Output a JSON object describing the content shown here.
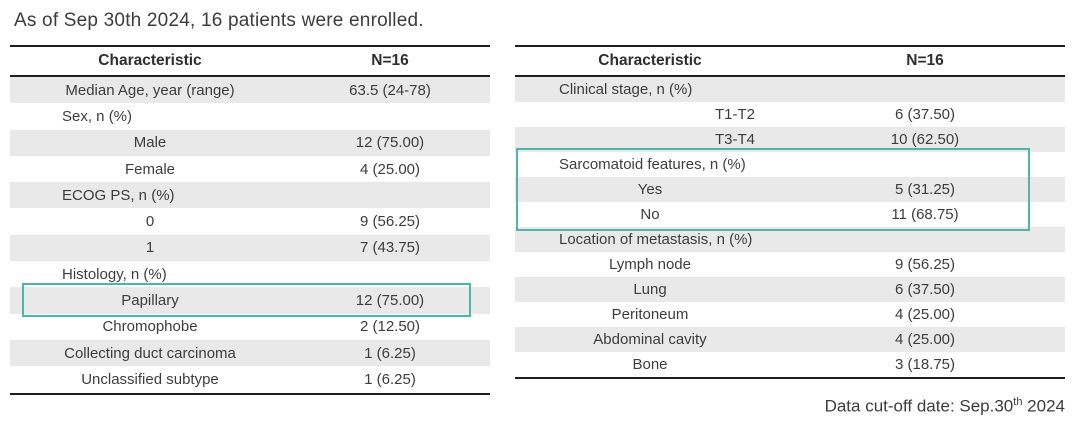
{
  "page": {
    "title": "As of Sep 30th 2024, 16 patients were enrolled.",
    "footer": {
      "prefix": "Data cut-off date: Sep.30",
      "superscript": "th",
      "suffix": " 2024"
    }
  },
  "colors": {
    "highlight_teal": "#4db6ac",
    "row_gray": "#e9e9e9",
    "border_black": "#1f1f1f",
    "text_gray": "#3d3d3d"
  },
  "left_table": {
    "columns": [
      "Characteristic",
      "N=16"
    ],
    "rows": [
      {
        "label": "Median Age, year (range)",
        "value": "63.5 (24-78)",
        "indent": "leaf",
        "highlighted": false
      },
      {
        "label": "Sex, n (%)",
        "value": "",
        "indent": "section",
        "highlighted": false
      },
      {
        "label": "Male",
        "value": "12 (75.00)",
        "indent": "leaf",
        "highlighted": false
      },
      {
        "label": "Female",
        "value": "4 (25.00)",
        "indent": "leaf",
        "highlighted": false
      },
      {
        "label": "ECOG PS, n (%)",
        "value": "",
        "indent": "section",
        "highlighted": false
      },
      {
        "label": "0",
        "value": "9 (56.25)",
        "indent": "leaf",
        "highlighted": false
      },
      {
        "label": "1",
        "value": "7 (43.75)",
        "indent": "leaf",
        "highlighted": false
      },
      {
        "label": "Histology, n (%)",
        "value": "",
        "indent": "section",
        "highlighted": false
      },
      {
        "label": "Papillary",
        "value": "12 (75.00)",
        "indent": "leaf",
        "highlighted": true
      },
      {
        "label": "Chromophobe",
        "value": "2 (12.50)",
        "indent": "leaf",
        "highlighted": false
      },
      {
        "label": "Collecting duct carcinoma",
        "value": "1 (6.25)",
        "indent": "leaf",
        "highlighted": false
      },
      {
        "label": "Unclassified subtype",
        "value": "1 (6.25)",
        "indent": "leaf",
        "highlighted": false
      }
    ]
  },
  "right_table": {
    "columns": [
      "Characteristic",
      "N=16"
    ],
    "rows": [
      {
        "label": "Clinical stage, n (%)",
        "value": "",
        "indent": "section",
        "highlighted": false
      },
      {
        "label": "T1-T2",
        "value": "6 (37.50)",
        "indent": "leaf2",
        "highlighted": false
      },
      {
        "label": "T3-T4",
        "value": "10 (62.50)",
        "indent": "leaf2",
        "highlighted": false
      },
      {
        "label": "Sarcomatoid features, n (%)",
        "value": "",
        "indent": "section",
        "highlighted": true
      },
      {
        "label": "Yes",
        "value": "5 (31.25)",
        "indent": "leaf",
        "highlighted": true
      },
      {
        "label": "No",
        "value": "11 (68.75)",
        "indent": "leaf",
        "highlighted": true
      },
      {
        "label": "Location of metastasis, n (%)",
        "value": "",
        "indent": "section",
        "highlighted": false
      },
      {
        "label": "Lymph node",
        "value": "9 (56.25)",
        "indent": "leaf",
        "highlighted": false
      },
      {
        "label": "Lung",
        "value": "6 (37.50)",
        "indent": "leaf",
        "highlighted": false
      },
      {
        "label": "Peritoneum",
        "value": "4 (25.00)",
        "indent": "leaf",
        "highlighted": false
      },
      {
        "label": "Abdominal cavity",
        "value": "4 (25.00)",
        "indent": "leaf",
        "highlighted": false
      },
      {
        "label": "Bone",
        "value": "3 (18.75)",
        "indent": "leaf",
        "highlighted": false
      }
    ]
  }
}
